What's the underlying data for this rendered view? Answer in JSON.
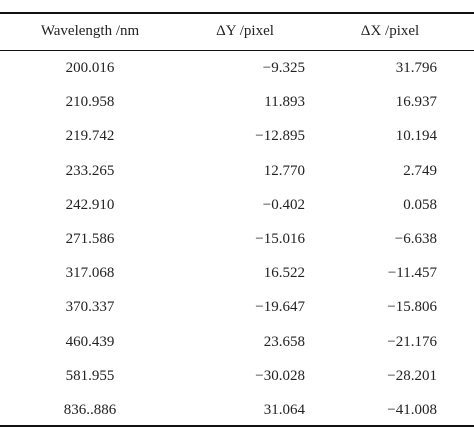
{
  "table": {
    "header": [
      "Wavelength /nm",
      "ΔY /pixel",
      "ΔX /pixel"
    ],
    "rows": [
      [
        "200.016",
        "−9.325",
        "31.796"
      ],
      [
        "210.958",
        "11.893",
        "16.937"
      ],
      [
        "219.742",
        "−12.895",
        "10.194"
      ],
      [
        "233.265",
        "12.770",
        "2.749"
      ],
      [
        "242.910",
        "−0.402",
        "0.058"
      ],
      [
        "271.586",
        "−15.016",
        "−6.638"
      ],
      [
        "317.068",
        "16.522",
        "−11.457"
      ],
      [
        "370.337",
        "−19.647",
        "−15.806"
      ],
      [
        "460.439",
        "23.658",
        "−21.176"
      ],
      [
        "581.955",
        "−30.028",
        "−28.201"
      ],
      [
        "836..886",
        "31.064",
        "−41.008"
      ]
    ]
  }
}
